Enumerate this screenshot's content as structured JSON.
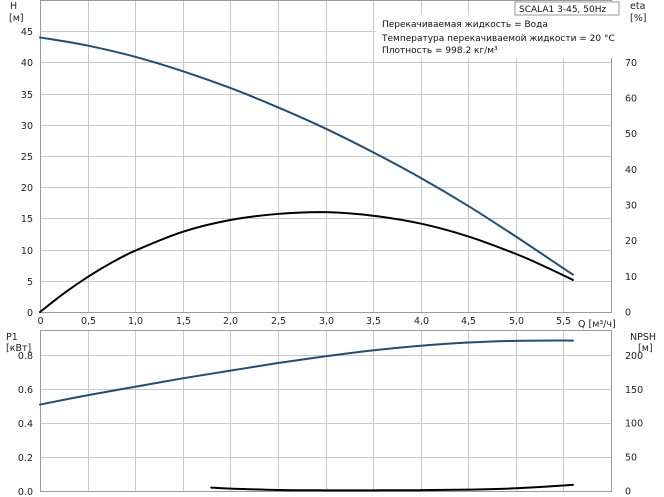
{
  "title_box": "SCALA1 3-45, 50Hz",
  "info_lines": [
    "Перекачиваемая жидкость = Вода",
    "Температура перекачиваемой жидкости = 20 °C",
    "Плотность = 998.2 кг/м³"
  ],
  "colors": {
    "blue": "#1f4e79",
    "black": "#000000",
    "grid": "#c9c9c9"
  },
  "chart_data": [
    {
      "type": "line",
      "name": "upper",
      "xlabel": "Q [м³/ч]",
      "ylabel_left": "H",
      "ylabel_left_unit": "[м]",
      "ylabel_right": "eta",
      "ylabel_right_unit": "[%]",
      "xlim": [
        0,
        6
      ],
      "ylim_left": [
        0,
        50
      ],
      "ylim_right": [
        0,
        87.5
      ],
      "x_ticks": [
        "0",
        "0,5",
        "1,0",
        "1,5",
        "2,0",
        "2,5",
        "3,0",
        "3,5",
        "4,0",
        "4,5",
        "5,0",
        "5,5"
      ],
      "y_left_ticks": [
        "0",
        "5",
        "10",
        "15",
        "20",
        "25",
        "30",
        "35",
        "40",
        "45"
      ],
      "y_right_ticks": [
        "0",
        "10",
        "20",
        "30",
        "40",
        "50",
        "60",
        "70"
      ],
      "grid": true,
      "series": [
        {
          "name": "H",
          "axis": "left",
          "color": "#1f4e79",
          "x": [
            0,
            0.5,
            1.0,
            1.5,
            2.0,
            2.5,
            3.0,
            3.5,
            4.0,
            4.5,
            5.0,
            5.5,
            5.6
          ],
          "y": [
            44,
            42.7,
            40.9,
            38.6,
            35.9,
            32.8,
            29.4,
            25.6,
            21.5,
            17.0,
            12.1,
            7.0,
            6.0
          ]
        },
        {
          "name": "eta",
          "axis": "right",
          "color": "#000000",
          "x": [
            0,
            0.25,
            0.5,
            0.75,
            1.0,
            1.5,
            2.0,
            2.5,
            3.0,
            3.5,
            4.0,
            4.5,
            5.0,
            5.3,
            5.6
          ],
          "y": [
            0,
            5.2,
            9.8,
            13.8,
            17.2,
            22.5,
            25.8,
            27.5,
            28.0,
            27.0,
            24.8,
            21.2,
            16.3,
            12.8,
            9.0
          ]
        }
      ]
    },
    {
      "type": "line",
      "name": "lower",
      "ylabel_left": "P1",
      "ylabel_left_unit": "[кВт]",
      "ylabel_right": "NPSH",
      "ylabel_right_unit": "[м]",
      "xlim": [
        0,
        6
      ],
      "ylim_left": [
        0,
        0.95
      ],
      "ylim_right": [
        0,
        237.5
      ],
      "y_left_ticks": [
        "0.0",
        "0.2",
        "0.4",
        "0.6",
        "0.8"
      ],
      "y_right_ticks": [
        "0",
        "50",
        "100",
        "150",
        "200"
      ],
      "grid": true,
      "series": [
        {
          "name": "P1",
          "axis": "left",
          "color": "#1f4e79",
          "x": [
            0,
            0.5,
            1.0,
            1.5,
            2.0,
            2.5,
            3.0,
            3.5,
            4.0,
            4.5,
            5.0,
            5.5,
            5.6
          ],
          "y": [
            0.51,
            0.565,
            0.615,
            0.665,
            0.71,
            0.755,
            0.795,
            0.83,
            0.857,
            0.876,
            0.886,
            0.888,
            0.887
          ]
        },
        {
          "name": "NPSH",
          "axis": "right",
          "color": "#000000",
          "x": [
            1.8,
            2.0,
            2.5,
            3.0,
            3.5,
            4.0,
            4.5,
            5.0,
            5.6
          ],
          "y": [
            5.0,
            3.5,
            1.5,
            1.0,
            1.0,
            1.2,
            2.0,
            4.0,
            9.0
          ]
        }
      ]
    }
  ]
}
